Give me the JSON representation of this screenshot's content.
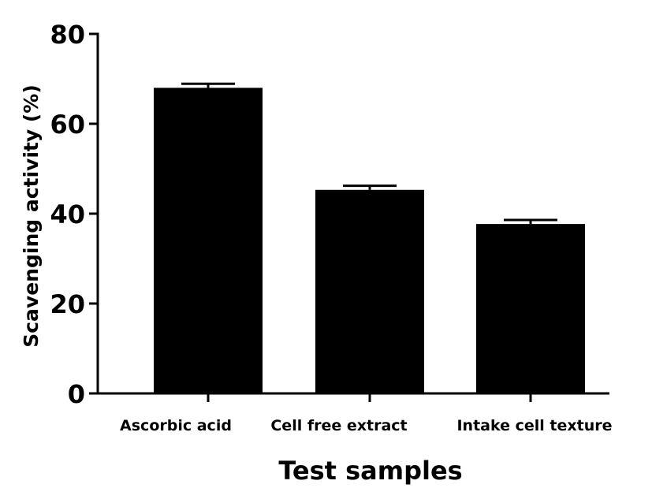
{
  "chart_data": {
    "type": "bar",
    "title": "",
    "xlabel": "Test samples",
    "ylabel": "Scavenging activity (%)",
    "categories": [
      "Ascorbic acid",
      "Cell free extract",
      "Intake cell texture"
    ],
    "series": [
      {
        "values": [
          68,
          45.3,
          37.7
        ],
        "error": [
          0.9,
          0.9,
          0.9
        ]
      }
    ],
    "ylim": [
      0,
      80
    ],
    "yticks": [
      "0",
      "20",
      "40",
      "60",
      "80"
    ],
    "grid": false,
    "legend": "none",
    "colors": {
      "bar": "#000000",
      "axis": "#000000",
      "background": "#ffffff"
    }
  }
}
